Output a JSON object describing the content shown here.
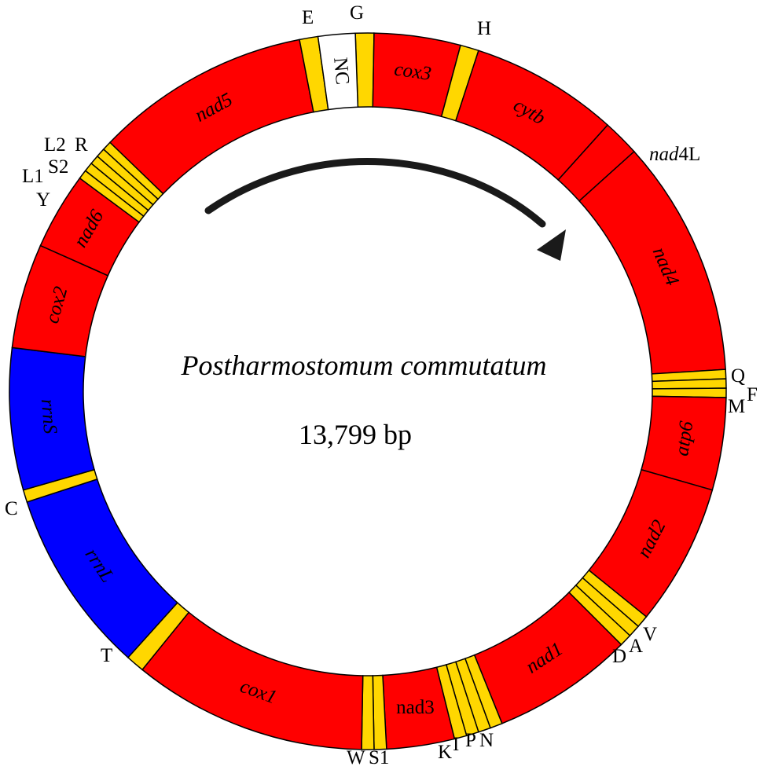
{
  "diagram": {
    "title": "Postharmostomum commutatum",
    "genome_size": "13,799 bp",
    "colors": {
      "protein_coding": "#ff0000",
      "rrna": "#0000ff",
      "trna": "#ffd700",
      "non_coding": "#ffffff",
      "outline": "#000000"
    },
    "gene_order_clockwise": [
      {
        "type": "trna",
        "name": "G"
      },
      {
        "type": "protein_coding",
        "name": "cox3"
      },
      {
        "type": "trna",
        "name": "H"
      },
      {
        "type": "protein_coding",
        "name": "cytb"
      },
      {
        "type": "protein_coding",
        "name": "nad4L",
        "label_italic": "nad",
        "label_plain": "4L"
      },
      {
        "type": "protein_coding",
        "name": "nad4"
      },
      {
        "type": "trna",
        "name": "Q"
      },
      {
        "type": "trna",
        "name": "F"
      },
      {
        "type": "trna",
        "name": "M"
      },
      {
        "type": "protein_coding",
        "name": "atp6"
      },
      {
        "type": "protein_coding",
        "name": "nad2"
      },
      {
        "type": "trna",
        "name": "V"
      },
      {
        "type": "trna",
        "name": "A"
      },
      {
        "type": "trna",
        "name": "D"
      },
      {
        "type": "protein_coding",
        "name": "nad1"
      },
      {
        "type": "trna",
        "name": "N"
      },
      {
        "type": "trna",
        "name": "P"
      },
      {
        "type": "trna",
        "name": "I"
      },
      {
        "type": "trna",
        "name": "K"
      },
      {
        "type": "protein_coding",
        "name": "nad3"
      },
      {
        "type": "trna",
        "name": "S1"
      },
      {
        "type": "trna",
        "name": "W"
      },
      {
        "type": "protein_coding",
        "name": "cox1"
      },
      {
        "type": "trna",
        "name": "T"
      },
      {
        "type": "rrna",
        "name": "rrnL"
      },
      {
        "type": "trna",
        "name": "C"
      },
      {
        "type": "rrna",
        "name": "rrnS"
      },
      {
        "type": "protein_coding",
        "name": "cox2"
      },
      {
        "type": "protein_coding",
        "name": "nad6"
      },
      {
        "type": "trna",
        "name": "Y"
      },
      {
        "type": "trna",
        "name": "L1"
      },
      {
        "type": "trna",
        "name": "S2"
      },
      {
        "type": "trna",
        "name": "L2"
      },
      {
        "type": "trna",
        "name": "R"
      },
      {
        "type": "protein_coding",
        "name": "nad5"
      },
      {
        "type": "trna",
        "name": "E"
      },
      {
        "type": "non_coding",
        "name": "NC"
      }
    ],
    "labels": {
      "cox3": "cox3",
      "cytb": "cytb",
      "nad4L_italic": "nad",
      "nad4L_plain": "4L",
      "nad4": "nad4",
      "atp6": "atp6",
      "nad2": "nad2",
      "nad1": "nad1",
      "nad3": "nad3",
      "cox1": "cox1",
      "rrnL": "rrnL",
      "rrnS": "rrnS",
      "cox2": "cox2",
      "nad6": "nad6",
      "nad5": "nad5",
      "NC": "NC",
      "trna_G": "G",
      "trna_H": "H",
      "trna_Q": "Q",
      "trna_F": "F",
      "trna_M": "M",
      "trna_V": "V",
      "trna_A": "A",
      "trna_D": "D",
      "trna_N": "N",
      "trna_P": "P",
      "trna_I": "I",
      "trna_K": "K",
      "trna_S1": "S1",
      "trna_W": "W",
      "trna_T": "T",
      "trna_C": "C",
      "trna_Y": "Y",
      "trna_L1": "L1",
      "trna_S2": "S2",
      "trna_L2": "L2",
      "trna_R": "R",
      "trna_E": "E"
    },
    "arrow_direction": "clockwise"
  }
}
